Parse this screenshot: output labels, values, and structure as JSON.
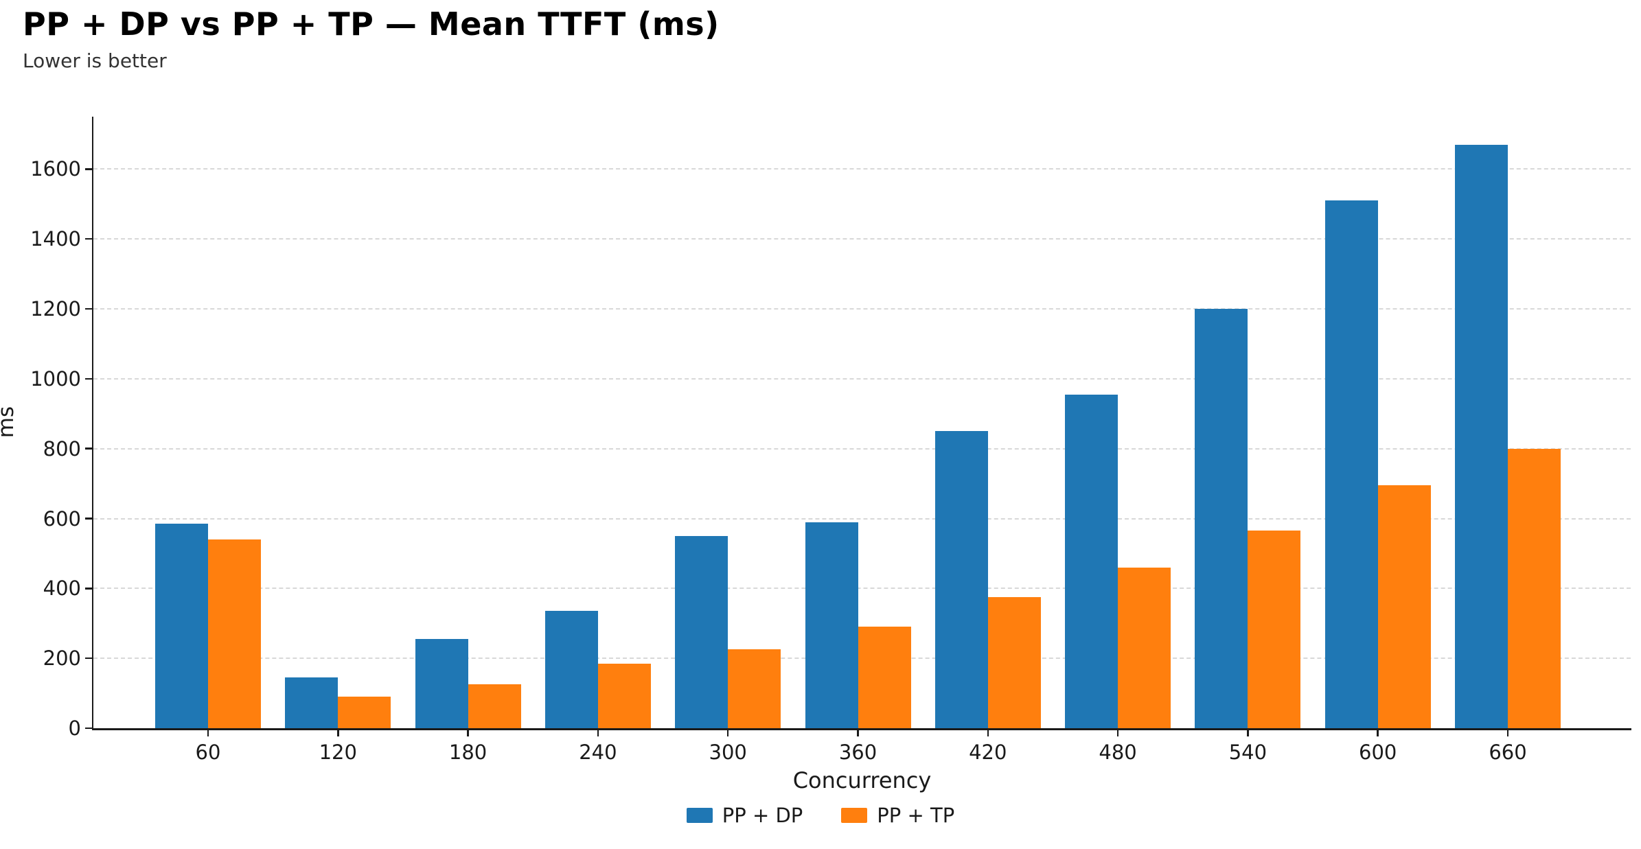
{
  "chart_data": {
    "type": "bar",
    "title": "PP + DP vs PP + TP — Mean TTFT (ms)",
    "subtitle": "Lower is better",
    "xlabel": "Concurrency",
    "ylabel": "ms",
    "categories": [
      "60",
      "120",
      "180",
      "240",
      "300",
      "360",
      "420",
      "480",
      "540",
      "600",
      "660"
    ],
    "series": [
      {
        "name": "PP + DP",
        "color": "#1f77b4",
        "values": [
          585,
          145,
          255,
          335,
          550,
          590,
          850,
          955,
          1200,
          1510,
          1670
        ]
      },
      {
        "name": "PP + TP",
        "color": "#ff7f0e",
        "values": [
          540,
          90,
          125,
          185,
          225,
          290,
          375,
          460,
          565,
          695,
          800
        ]
      }
    ],
    "ylim": [
      0,
      1750
    ],
    "yticks": [
      0,
      200,
      400,
      600,
      800,
      1000,
      1200,
      1400,
      1600
    ],
    "grid": "horizontal-dashed",
    "legend_position": "bottom-center",
    "colors": {
      "gridline": "#d8d8d8",
      "axis": "#1a1a1a",
      "background": "#ffffff"
    }
  }
}
